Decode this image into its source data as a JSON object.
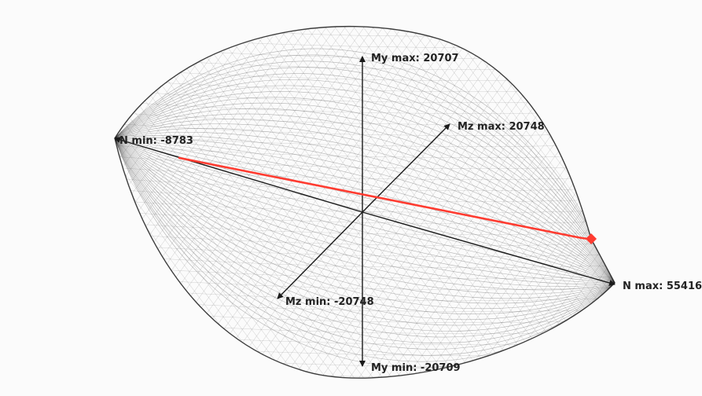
{
  "diagram": {
    "type": "3d-interaction-surface",
    "colors": {
      "mesh": "#1a1a1a",
      "axis": "#1a1a1a",
      "load_path": "#ff3b30"
    },
    "axes": {
      "n_max": {
        "label": "N max: 55416"
      },
      "n_min": {
        "label": "N min: -8783"
      },
      "my_max": {
        "label": "My max: 20707"
      },
      "my_min": {
        "label": "My min: -20709"
      },
      "mz_max": {
        "label": "Mz max: 20748"
      },
      "mz_min": {
        "label": "Mz min: -20748"
      }
    }
  }
}
